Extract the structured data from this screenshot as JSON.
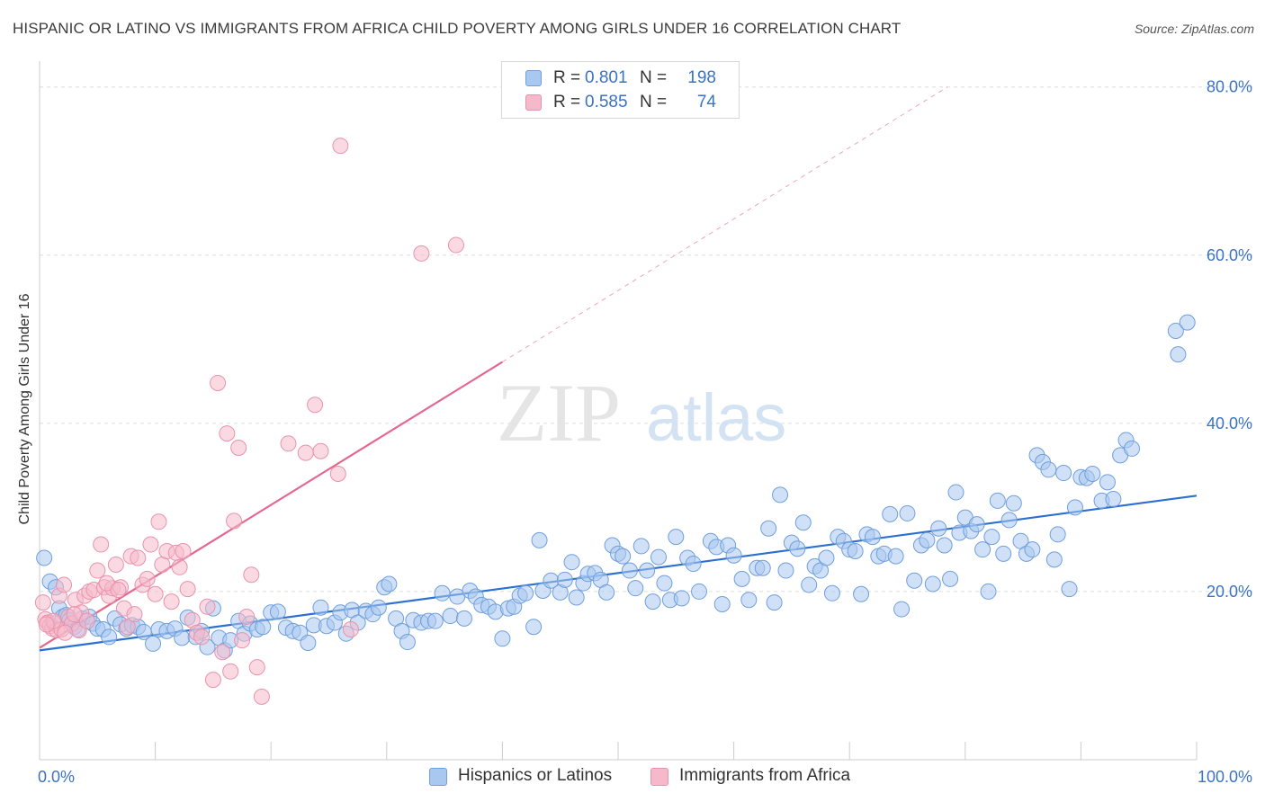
{
  "title": "HISPANIC OR LATINO VS IMMIGRANTS FROM AFRICA CHILD POVERTY AMONG GIRLS UNDER 16 CORRELATION CHART",
  "source": "Source: ZipAtlas.com",
  "watermark": {
    "zip": "ZIP",
    "atlas": "atlas"
  },
  "legend_top": {
    "rows": [
      {
        "r_label": "R =",
        "r_value": "0.801",
        "n_label": "N =",
        "n_value": "198"
      },
      {
        "r_label": "R =",
        "r_value": "0.585",
        "n_label": "N =",
        "n_value": "74"
      }
    ]
  },
  "legend_bottom": {
    "items": [
      {
        "label": "Hispanics or Latinos"
      },
      {
        "label": "Immigrants from Africa"
      }
    ]
  },
  "colors": {
    "blue_fill": "#a9c8f0",
    "blue_stroke": "#6f9fdd",
    "blue_line": "#2b6fd0",
    "pink_fill": "#f5b9cb",
    "pink_stroke": "#e893ad",
    "pink_line": "#e4678f",
    "axis_label": "#3a73c4",
    "grid": "#dddddd"
  },
  "chart_data": {
    "type": "scatter",
    "title": "HISPANIC OR LATINO VS IMMIGRANTS FROM AFRICA CHILD POVERTY AMONG GIRLS UNDER 16 CORRELATION CHART",
    "xlabel": "",
    "ylabel": "Child Poverty Among Girls Under 16",
    "xlim": [
      0,
      100
    ],
    "ylim": [
      0,
      82
    ],
    "x_tick_labels": [
      "0.0%",
      "100.0%"
    ],
    "y_ticks": [
      20,
      40,
      60,
      80
    ],
    "y_tick_labels": [
      "20.0%",
      "40.0%",
      "60.0%",
      "80.0%"
    ],
    "grid": true,
    "legend_position": "top-center",
    "series": [
      {
        "name": "Hispanics or Latinos",
        "color": "#a9c8f0",
        "trend": {
          "x": [
            0,
            100
          ],
          "y": [
            13.0,
            31.4
          ],
          "dashed_after": null
        },
        "points": [
          [
            0.4,
            24
          ],
          [
            0.9,
            21.2
          ],
          [
            1.4,
            20.5
          ],
          [
            1.7,
            18
          ],
          [
            2.0,
            17.0
          ],
          [
            2.3,
            17.2
          ],
          [
            2.6,
            16.6
          ],
          [
            3.0,
            15.8
          ],
          [
            3.3,
            15.5
          ],
          [
            3.7,
            16.8
          ],
          [
            4.3,
            17.0
          ],
          [
            4.6,
            16.2
          ],
          [
            5.0,
            15.6
          ],
          [
            5.5,
            15.5
          ],
          [
            6.0,
            14.6
          ],
          [
            6.5,
            16.8
          ],
          [
            7.0,
            16.1
          ],
          [
            7.5,
            15.6
          ],
          [
            8.0,
            16.0
          ],
          [
            8.5,
            15.8
          ],
          [
            9.0,
            15.2
          ],
          [
            9.8,
            13.8
          ],
          [
            10.3,
            15.5
          ],
          [
            11.0,
            15.3
          ],
          [
            11.7,
            15.6
          ],
          [
            12.3,
            14.5
          ],
          [
            12.8,
            16.9
          ],
          [
            13.5,
            14.6
          ],
          [
            14.0,
            15.3
          ],
          [
            14.5,
            13.4
          ],
          [
            15.0,
            18
          ],
          [
            15.5,
            14.5
          ],
          [
            16.0,
            13.0
          ],
          [
            16.5,
            14.2
          ],
          [
            17.2,
            16.5
          ],
          [
            17.7,
            15.0
          ],
          [
            18.2,
            16.2
          ],
          [
            18.8,
            15.5
          ],
          [
            19.3,
            15.8
          ],
          [
            20.0,
            17.5
          ],
          [
            20.6,
            17.6
          ],
          [
            21.3,
            15.7
          ],
          [
            21.9,
            15.3
          ],
          [
            22.5,
            15.1
          ],
          [
            23.2,
            13.9
          ],
          [
            23.7,
            16.0
          ],
          [
            24.3,
            18.1
          ],
          [
            24.8,
            15.9
          ],
          [
            25.5,
            16.3
          ],
          [
            26.0,
            17.5
          ],
          [
            26.5,
            15.0
          ],
          [
            27.0,
            17.8
          ],
          [
            27.5,
            16.3
          ],
          [
            28.2,
            17.7
          ],
          [
            28.8,
            17.3
          ],
          [
            29.3,
            18.1
          ],
          [
            29.8,
            20.5
          ],
          [
            30.2,
            20.9
          ],
          [
            30.8,
            16.8
          ],
          [
            31.3,
            15.3
          ],
          [
            31.8,
            14.0
          ],
          [
            32.3,
            16.6
          ],
          [
            33.0,
            16.3
          ],
          [
            33.6,
            16.5
          ],
          [
            34.2,
            16.5
          ],
          [
            34.8,
            19.8
          ],
          [
            35.5,
            17.1
          ],
          [
            36.1,
            19.4
          ],
          [
            36.7,
            16.8
          ],
          [
            37.2,
            20.1
          ],
          [
            37.7,
            19.4
          ],
          [
            38.2,
            18.4
          ],
          [
            38.8,
            18.2
          ],
          [
            39.4,
            17.6
          ],
          [
            40.0,
            14.4
          ],
          [
            40.5,
            18.0
          ],
          [
            41.0,
            18.2
          ],
          [
            41.5,
            19.5
          ],
          [
            42.0,
            19.8
          ],
          [
            42.7,
            15.8
          ],
          [
            43.2,
            26.1
          ],
          [
            43.5,
            20.1
          ],
          [
            44.2,
            21.3
          ],
          [
            45.0,
            19.9
          ],
          [
            45.4,
            21.4
          ],
          [
            46.0,
            23.5
          ],
          [
            46.4,
            19.3
          ],
          [
            47.0,
            21.0
          ],
          [
            47.4,
            22.1
          ],
          [
            48.0,
            22.2
          ],
          [
            48.5,
            21.4
          ],
          [
            49.0,
            19.9
          ],
          [
            49.5,
            25.5
          ],
          [
            50.0,
            24.5
          ],
          [
            50.4,
            24.2
          ],
          [
            51.0,
            22.5
          ],
          [
            51.5,
            20.4
          ],
          [
            52.0,
            25.4
          ],
          [
            52.5,
            22.5
          ],
          [
            53.0,
            18.8
          ],
          [
            53.5,
            24.1
          ],
          [
            54.0,
            21.0
          ],
          [
            54.5,
            19.0
          ],
          [
            55.0,
            26.5
          ],
          [
            55.5,
            19.2
          ],
          [
            56.0,
            24.0
          ],
          [
            56.5,
            23.3
          ],
          [
            57.0,
            20.0
          ],
          [
            58.0,
            26.0
          ],
          [
            58.5,
            25.3
          ],
          [
            59.0,
            18.5
          ],
          [
            59.5,
            25.5
          ],
          [
            60.0,
            24.3
          ],
          [
            60.7,
            21.5
          ],
          [
            61.3,
            19.0
          ],
          [
            62.0,
            22.8
          ],
          [
            62.5,
            22.8
          ],
          [
            63.0,
            27.5
          ],
          [
            63.5,
            18.7
          ],
          [
            64.0,
            31.5
          ],
          [
            64.5,
            22.5
          ],
          [
            65.0,
            25.8
          ],
          [
            65.5,
            25.1
          ],
          [
            66.0,
            28.2
          ],
          [
            66.5,
            20.8
          ],
          [
            67.0,
            23.0
          ],
          [
            67.5,
            22.5
          ],
          [
            68.0,
            24.0
          ],
          [
            68.5,
            19.8
          ],
          [
            69.0,
            26.5
          ],
          [
            69.5,
            26.0
          ],
          [
            70.0,
            25.0
          ],
          [
            70.5,
            24.8
          ],
          [
            71.0,
            19.7
          ],
          [
            71.5,
            26.8
          ],
          [
            72.0,
            26.5
          ],
          [
            72.5,
            24.2
          ],
          [
            73.0,
            24.5
          ],
          [
            73.5,
            29.2
          ],
          [
            74.0,
            24.2
          ],
          [
            74.5,
            17.9
          ],
          [
            75.0,
            29.3
          ],
          [
            75.6,
            21.3
          ],
          [
            76.2,
            25.5
          ],
          [
            76.7,
            26.1
          ],
          [
            77.2,
            20.9
          ],
          [
            77.7,
            27.5
          ],
          [
            78.2,
            25.5
          ],
          [
            78.7,
            21.5
          ],
          [
            79.2,
            31.8
          ],
          [
            79.5,
            27.0
          ],
          [
            80.0,
            28.8
          ],
          [
            80.5,
            27.2
          ],
          [
            81.0,
            28.0
          ],
          [
            81.5,
            25.0
          ],
          [
            82.0,
            20.0
          ],
          [
            82.3,
            26.5
          ],
          [
            82.8,
            30.8
          ],
          [
            83.3,
            24.5
          ],
          [
            83.8,
            28.5
          ],
          [
            84.2,
            30.5
          ],
          [
            84.8,
            26.0
          ],
          [
            85.3,
            24.5
          ],
          [
            85.8,
            25.0
          ],
          [
            86.2,
            36.2
          ],
          [
            86.7,
            35.4
          ],
          [
            87.2,
            34.5
          ],
          [
            87.7,
            23.8
          ],
          [
            88.0,
            26.8
          ],
          [
            88.5,
            34.1
          ],
          [
            89.0,
            20.3
          ],
          [
            89.5,
            30.0
          ],
          [
            90.0,
            33.6
          ],
          [
            90.5,
            33.5
          ],
          [
            91.0,
            34.0
          ],
          [
            91.8,
            30.8
          ],
          [
            92.3,
            33.0
          ],
          [
            92.8,
            31.0
          ],
          [
            93.4,
            36.2
          ],
          [
            93.9,
            38.0
          ],
          [
            94.4,
            37.0
          ],
          [
            98.2,
            51.0
          ],
          [
            98.4,
            48.2
          ],
          [
            99.2,
            52.0
          ]
        ]
      },
      {
        "name": "Immigrants from Africa",
        "color": "#f5b9cb",
        "trend": {
          "x": [
            0,
            40
          ],
          "y": [
            13.3,
            47.3
          ],
          "dashed_to": {
            "x": 100,
            "y": 98.3
          }
        },
        "points": [
          [
            0.3,
            18.7
          ],
          [
            0.5,
            16.7
          ],
          [
            0.7,
            16.3
          ],
          [
            0.9,
            15.9
          ],
          [
            1.1,
            15.6
          ],
          [
            1.3,
            16.2
          ],
          [
            1.5,
            15.4
          ],
          [
            1.7,
            19.5
          ],
          [
            1.9,
            15.5
          ],
          [
            2.1,
            20.8
          ],
          [
            2.5,
            17.0
          ],
          [
            2.8,
            16.2
          ],
          [
            3.1,
            19.0
          ],
          [
            3.4,
            15.4
          ],
          [
            3.6,
            17.5
          ],
          [
            3.9,
            19.5
          ],
          [
            4.3,
            20.0
          ],
          [
            4.7,
            20.2
          ],
          [
            5.0,
            22.5
          ],
          [
            5.3,
            25.6
          ],
          [
            5.6,
            20.5
          ],
          [
            6.0,
            19.5
          ],
          [
            6.3,
            20.4
          ],
          [
            6.6,
            23.2
          ],
          [
            7.0,
            20.5
          ],
          [
            7.3,
            18.0
          ],
          [
            7.6,
            15.8
          ],
          [
            7.9,
            24.2
          ],
          [
            8.2,
            17.3
          ],
          [
            8.5,
            24.0
          ],
          [
            8.9,
            20.8
          ],
          [
            9.3,
            21.5
          ],
          [
            9.6,
            25.6
          ],
          [
            10.0,
            19.7
          ],
          [
            10.3,
            28.3
          ],
          [
            10.6,
            23.2
          ],
          [
            11.0,
            24.8
          ],
          [
            11.4,
            18.8
          ],
          [
            11.8,
            24.6
          ],
          [
            12.1,
            22.9
          ],
          [
            12.4,
            24.8
          ],
          [
            12.8,
            20.3
          ],
          [
            13.2,
            16.6
          ],
          [
            13.6,
            15.1
          ],
          [
            14.0,
            14.6
          ],
          [
            14.5,
            18.2
          ],
          [
            15.0,
            9.5
          ],
          [
            15.4,
            44.8
          ],
          [
            15.8,
            12.8
          ],
          [
            16.2,
            38.8
          ],
          [
            16.5,
            10.5
          ],
          [
            16.8,
            28.4
          ],
          [
            17.2,
            37.1
          ],
          [
            17.5,
            14.2
          ],
          [
            17.9,
            17.0
          ],
          [
            18.3,
            22.0
          ],
          [
            18.8,
            11.0
          ],
          [
            19.2,
            7.5
          ],
          [
            21.5,
            37.6
          ],
          [
            23.0,
            36.5
          ],
          [
            23.8,
            42.2
          ],
          [
            24.3,
            36.7
          ],
          [
            25.8,
            34.0
          ],
          [
            26.0,
            73.0
          ],
          [
            26.9,
            15.5
          ],
          [
            33.0,
            60.2
          ],
          [
            36.0,
            61.2
          ],
          [
            1.2,
            16.5
          ],
          [
            2.2,
            15.1
          ],
          [
            3.0,
            17.3
          ],
          [
            4.1,
            16.5
          ],
          [
            5.8,
            21.0
          ],
          [
            6.8,
            20.2
          ],
          [
            0.6,
            16.1
          ]
        ]
      }
    ]
  }
}
